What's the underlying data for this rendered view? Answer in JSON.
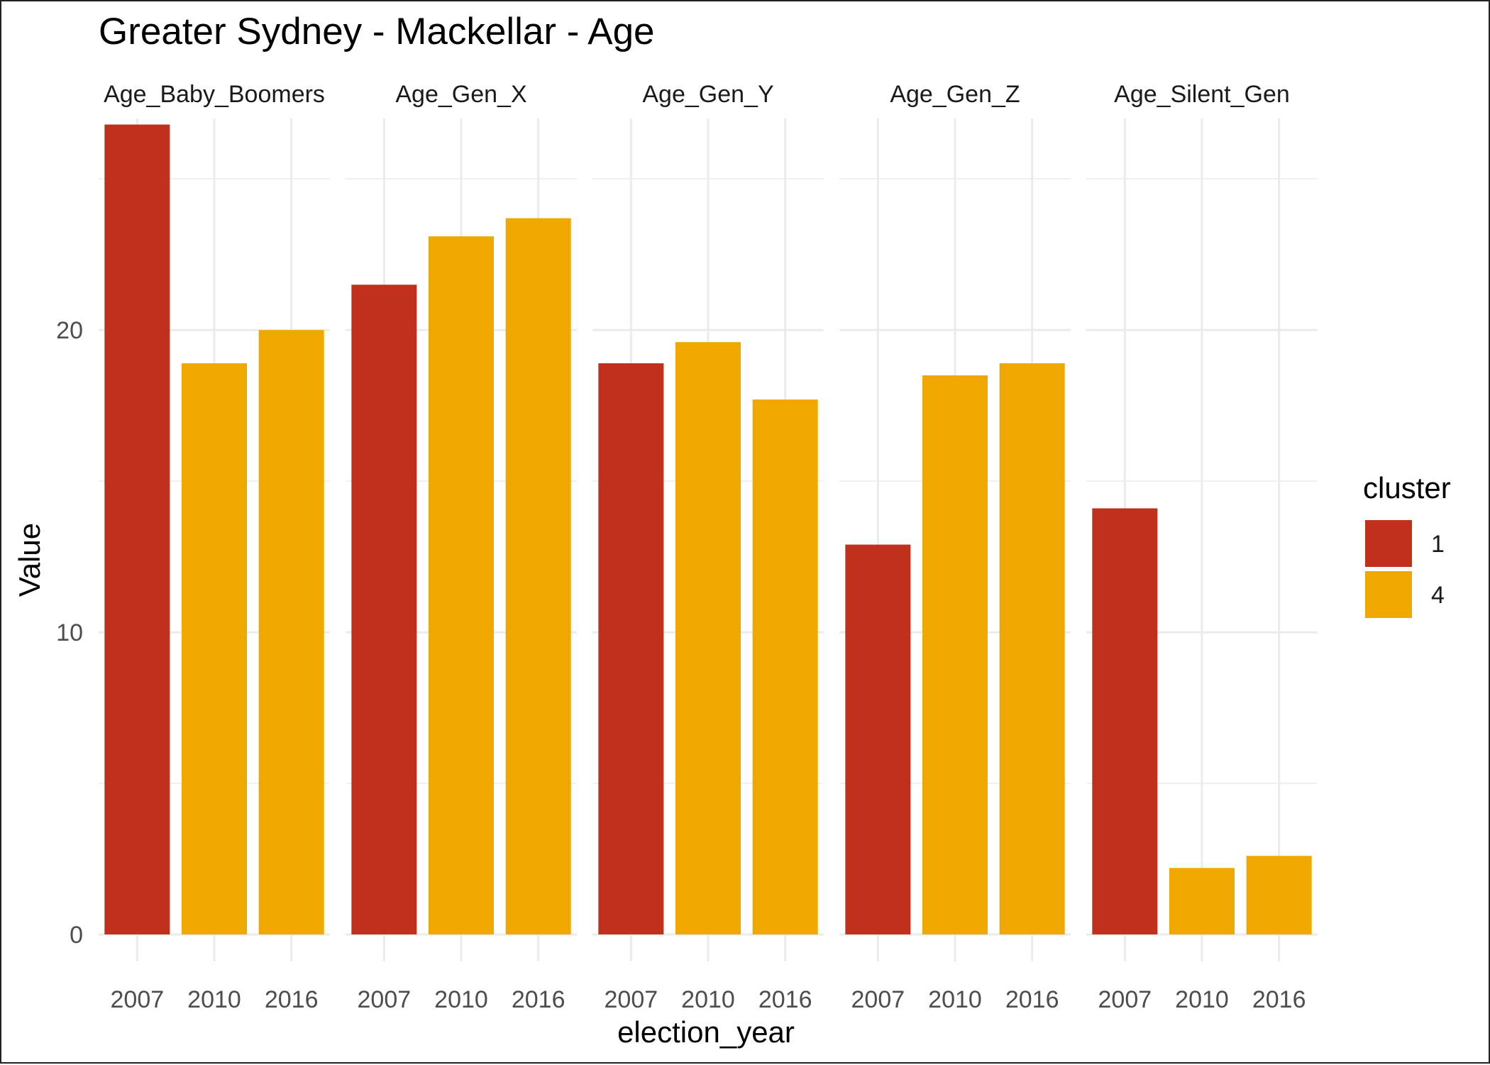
{
  "chart_data": {
    "type": "bar",
    "title": "Greater Sydney - Mackellar - Age",
    "xlabel": "election_year",
    "ylabel": "Value",
    "ylim": [
      0,
      27
    ],
    "yticks": [
      0,
      10,
      20
    ],
    "grid": true,
    "legend": {
      "title": "cluster",
      "placement": "right",
      "entries": [
        {
          "label": "1",
          "color": "#C0301A"
        },
        {
          "label": "4",
          "color": "#EFA800"
        }
      ]
    },
    "categories": [
      "2007",
      "2010",
      "2016"
    ],
    "facets": [
      {
        "name": "Age_Baby_Boomers",
        "values": [
          26.8,
          18.9,
          20.0
        ],
        "clusters": [
          "1",
          "4",
          "4"
        ]
      },
      {
        "name": "Age_Gen_X",
        "values": [
          21.5,
          23.1,
          23.7
        ],
        "clusters": [
          "1",
          "4",
          "4"
        ]
      },
      {
        "name": "Age_Gen_Y",
        "values": [
          18.9,
          19.6,
          17.7
        ],
        "clusters": [
          "1",
          "4",
          "4"
        ]
      },
      {
        "name": "Age_Gen_Z",
        "values": [
          12.9,
          18.5,
          18.9
        ],
        "clusters": [
          "1",
          "4",
          "4"
        ]
      },
      {
        "name": "Age_Silent_Gen",
        "values": [
          14.1,
          2.2,
          2.6
        ],
        "clusters": [
          "1",
          "4",
          "4"
        ]
      }
    ]
  }
}
